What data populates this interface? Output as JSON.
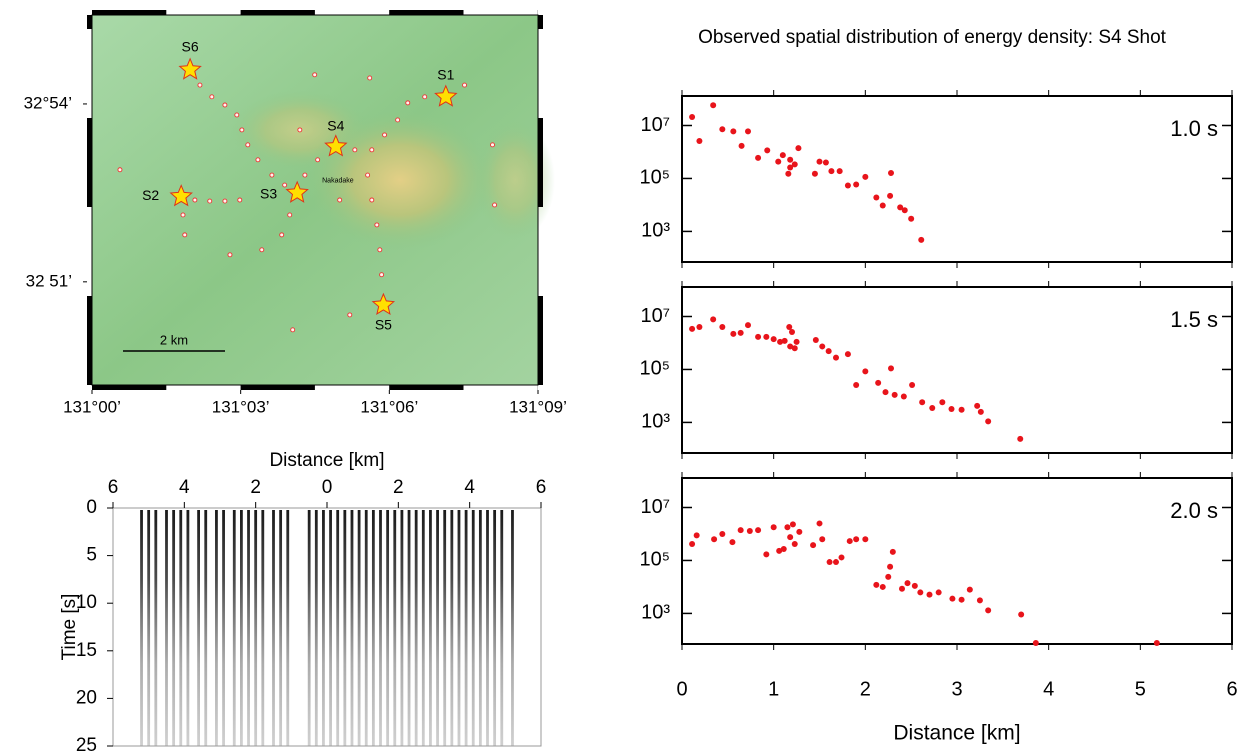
{
  "chart_data": [
    {
      "type": "map",
      "xlim": [
        131.0,
        131.15
      ],
      "ylim": [
        32.821,
        32.925
      ],
      "xticks": [
        {
          "value": 131.0,
          "label": "131°00’"
        },
        {
          "value": 131.05,
          "label": "131°03’"
        },
        {
          "value": 131.1,
          "label": "131°06’"
        },
        {
          "value": 131.15,
          "label": "131°09’"
        }
      ],
      "yticks": [
        {
          "value": 32.9,
          "label": "32°54’"
        },
        {
          "value": 32.85,
          "label": "32 51’"
        }
      ],
      "stations": {
        "x": [
          131.0363,
          131.0403,
          131.0447,
          131.0487,
          131.0504,
          131.0524,
          131.0558,
          131.0605,
          131.0648,
          131.0346,
          131.0396,
          131.0447,
          131.0497,
          131.0306,
          131.0312,
          131.0716,
          131.0759,
          131.0699,
          131.0884,
          131.0941,
          131.0984,
          131.1028,
          131.1062,
          131.1119,
          131.1253,
          131.0927,
          131.0941,
          131.0958,
          131.0968,
          131.0974,
          131.0665,
          131.0638,
          131.0571,
          131.0464,
          131.0749,
          131.0934,
          131.1347,
          131.1354,
          131.0867,
          131.0675,
          131.0094,
          131.0833
        ],
        "y": [
          32.9053,
          32.902,
          32.8997,
          32.8969,
          32.8927,
          32.8885,
          32.8843,
          32.88,
          32.8772,
          32.873,
          32.8727,
          32.8727,
          32.873,
          32.8688,
          32.8632,
          32.88,
          32.8843,
          32.8927,
          32.8871,
          32.8871,
          32.8913,
          32.8955,
          32.9003,
          32.902,
          32.9053,
          32.88,
          32.873,
          32.866,
          32.859,
          32.852,
          32.8688,
          32.8632,
          32.859,
          32.8576,
          32.9082,
          32.9073,
          32.8885,
          32.8716,
          32.8407,
          32.8365,
          32.8815,
          32.873
        ]
      },
      "shots": {
        "names": [
          "S1",
          "S2",
          "S3",
          "S4",
          "S5",
          "S6"
        ],
        "x": [
          131.119,
          131.03,
          131.069,
          131.082,
          131.098,
          131.033
        ],
        "y": [
          32.902,
          32.874,
          32.875,
          32.888,
          32.8435,
          32.9096
        ]
      },
      "place": {
        "label": "Nakadake",
        "x": 131.0827,
        "y": 32.8784
      },
      "scale_label": "2 km"
    },
    {
      "type": "seismogram",
      "xlabel": "Distance [km]",
      "ylabel": "Time [s]",
      "xlim": [
        -6,
        6
      ],
      "ylim": [
        0,
        25
      ],
      "xticks": [
        {
          "value": -6,
          "label": "6"
        },
        {
          "value": -4,
          "label": "4"
        },
        {
          "value": -2,
          "label": "2"
        },
        0,
        2,
        4,
        6
      ],
      "yticks": [
        0,
        5,
        10,
        15,
        20,
        25
      ],
      "traces": [
        -5.2,
        -5.0,
        -4.8,
        -4.5,
        -4.3,
        -4.1,
        -3.9,
        -3.6,
        -3.4,
        -3.1,
        -2.9,
        -2.6,
        -2.4,
        -2.2,
        -2.0,
        -1.8,
        -1.5,
        -1.3,
        -1.1,
        -0.5,
        -0.3,
        -0.1,
        0.1,
        0.3,
        0.5,
        0.7,
        0.9,
        1.1,
        1.3,
        1.5,
        1.7,
        1.9,
        2.1,
        2.3,
        2.5,
        2.7,
        2.9,
        3.1,
        3.3,
        3.5,
        3.7,
        3.9,
        4.1,
        4.3,
        4.5,
        4.7,
        4.9,
        5.2
      ]
    },
    {
      "type": "scatter",
      "title": "Observed spatial distribution of energy density: S4 Shot",
      "xlabel": "Distance [km]",
      "xlim": [
        0,
        6
      ],
      "xticks": [
        0,
        1,
        2,
        3,
        4,
        5,
        6
      ],
      "ylim": [
        70,
        130000000.0
      ],
      "log_y": true,
      "yticks": [
        {
          "value": 1000,
          "label": "10³"
        },
        {
          "value": 100000,
          "label": "10⁵"
        },
        {
          "value": 10000000,
          "label": "10⁷"
        }
      ],
      "series": [
        {
          "name": "1.0 s",
          "color": "#e8141b",
          "x": [
            0.11,
            0.19,
            0.34,
            0.44,
            0.56,
            0.72,
            0.65,
            0.83,
            0.93,
            1.05,
            1.1,
            1.18,
            1.16,
            1.23,
            1.18,
            1.27,
            1.45,
            1.5,
            1.57,
            1.63,
            1.72,
            1.81,
            1.9,
            2.0,
            2.12,
            2.19,
            2.27,
            2.28,
            2.38,
            2.43,
            2.5,
            2.61
          ],
          "values": [
            21000000.0,
            2600000.0,
            58000000.0,
            7200000.0,
            6000000.0,
            6000000.0,
            1700000.0,
            600000.0,
            1150000.0,
            430000.0,
            760000.0,
            510000.0,
            150000.0,
            340000.0,
            260000.0,
            1400000.0,
            150000.0,
            430000.0,
            400000.0,
            190000.0,
            190000.0,
            54000.0,
            59000.0,
            115000.0,
            19000.0,
            9500.0,
            22000.0,
            160000.0,
            8100.0,
            6300.0,
            3000.0,
            480.0
          ]
        },
        {
          "name": "1.5 s",
          "color": "#e8141b",
          "x": [
            0.11,
            0.19,
            0.34,
            0.44,
            0.56,
            0.64,
            0.72,
            0.83,
            0.92,
            1.0,
            1.07,
            1.12,
            1.17,
            1.2,
            1.18,
            1.23,
            1.25,
            1.46,
            1.53,
            1.6,
            1.68,
            1.81,
            1.9,
            2.0,
            2.14,
            2.22,
            2.28,
            2.32,
            2.42,
            2.51,
            2.62,
            2.73,
            2.84,
            2.94,
            3.05,
            3.22,
            3.26,
            3.34,
            3.69
          ],
          "values": [
            3400000.0,
            4000000.0,
            7800000.0,
            4000000.0,
            2200000.0,
            2400000.0,
            4700000.0,
            1700000.0,
            1700000.0,
            1400000.0,
            1100000.0,
            1200000.0,
            4000000.0,
            2600000.0,
            740000.0,
            630000.0,
            1100000.0,
            1300000.0,
            740000.0,
            490000.0,
            280000.0,
            380000.0,
            26000.0,
            85000.0,
            31000.0,
            14000.0,
            110000.0,
            11000.0,
            9500.0,
            26000.0,
            5800.0,
            3500.0,
            5800.0,
            3200.0,
            3000.0,
            4200.0,
            2500.0,
            1100.0,
            240.0
          ]
        },
        {
          "name": "2.0 s",
          "color": "#e8141b",
          "x": [
            0.11,
            0.16,
            0.35,
            0.44,
            0.55,
            0.64,
            0.74,
            0.83,
            0.92,
            1.0,
            1.06,
            1.11,
            1.15,
            1.18,
            1.21,
            1.23,
            1.28,
            1.43,
            1.5,
            1.53,
            1.61,
            1.68,
            1.74,
            1.83,
            1.9,
            2.0,
            2.12,
            2.19,
            2.27,
            2.3,
            2.25,
            2.4,
            2.46,
            2.54,
            2.6,
            2.7,
            2.8,
            2.95,
            3.05,
            3.14,
            3.25,
            3.34,
            3.7,
            3.86,
            5.18
          ],
          "values": [
            420000.0,
            890000.0,
            630000.0,
            1000000.0,
            490000.0,
            1400000.0,
            1300000.0,
            1400000.0,
            170000.0,
            1800000.0,
            230000.0,
            270000.0,
            1800000.0,
            760000.0,
            2300000.0,
            420000.0,
            1200000.0,
            380000.0,
            2500000.0,
            630000.0,
            87000.0,
            87000.0,
            130000.0,
            540000.0,
            630000.0,
            630000.0,
            12000.0,
            10000.0,
            58000.0,
            210000.0,
            24000.0,
            8500.0,
            14000.0,
            11000.0,
            6200.0,
            5100.0,
            6200.0,
            3600.0,
            3300.0,
            7900.0,
            3100.0,
            1300.0,
            910.0,
            76,
            76
          ]
        }
      ]
    }
  ]
}
